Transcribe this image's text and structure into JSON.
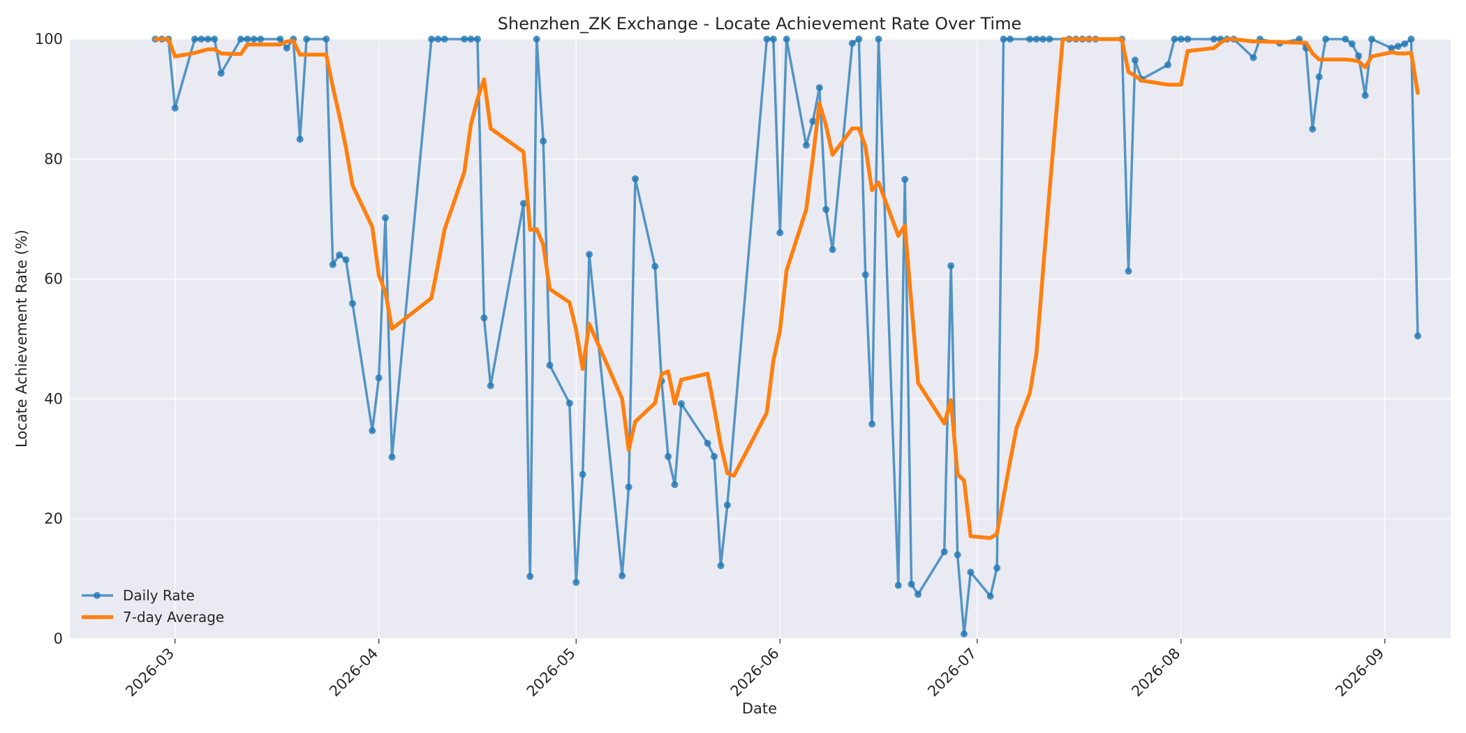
{
  "chart_data": {
    "type": "line",
    "title": "Shenzhen_ZK Exchange - Locate Achievement Rate Over Time",
    "xlabel": "Date",
    "ylabel": "Locate Achievement Rate (%)",
    "ylim": [
      0,
      100
    ],
    "xlim": [
      "2026-02-13",
      "2026-09-11"
    ],
    "y_ticks": [
      0,
      20,
      40,
      60,
      80,
      100
    ],
    "x_ticks": [
      "2026-03",
      "2026-04",
      "2026-05",
      "2026-06",
      "2026-07",
      "2026-08",
      "2026-09"
    ],
    "grid": true,
    "legend_position": "lower-left",
    "series": [
      {
        "name": "Daily Rate",
        "color": "#1f77b4",
        "marker": "circle",
        "points": [
          [
            "2026-02-26",
            100
          ],
          [
            "2026-02-27",
            100
          ],
          [
            "2026-02-28",
            100
          ],
          [
            "2026-03-01",
            88.5
          ],
          [
            "2026-03-04",
            100
          ],
          [
            "2026-03-05",
            100
          ],
          [
            "2026-03-06",
            100
          ],
          [
            "2026-03-07",
            100
          ],
          [
            "2026-03-08",
            94.3
          ],
          [
            "2026-03-11",
            100
          ],
          [
            "2026-03-12",
            100
          ],
          [
            "2026-03-13",
            100
          ],
          [
            "2026-03-14",
            100
          ],
          [
            "2026-03-17",
            100
          ],
          [
            "2026-03-18",
            98.5
          ],
          [
            "2026-03-19",
            100
          ],
          [
            "2026-03-20",
            83.3
          ],
          [
            "2026-03-21",
            100
          ],
          [
            "2026-03-24",
            100
          ],
          [
            "2026-03-25",
            62.4
          ],
          [
            "2026-03-26",
            64
          ],
          [
            "2026-03-27",
            63.2
          ],
          [
            "2026-03-28",
            55.9
          ],
          [
            "2026-03-31",
            34.7
          ],
          [
            "2026-04-01",
            43.5
          ],
          [
            "2026-04-02",
            70.2
          ],
          [
            "2026-04-03",
            30.3
          ],
          [
            "2026-04-09",
            100
          ],
          [
            "2026-04-10",
            100
          ],
          [
            "2026-04-11",
            100
          ],
          [
            "2026-04-14",
            100
          ],
          [
            "2026-04-15",
            100
          ],
          [
            "2026-04-16",
            100
          ],
          [
            "2026-04-17",
            53.5
          ],
          [
            "2026-04-18",
            42.2
          ],
          [
            "2026-04-23",
            72.6
          ],
          [
            "2026-04-24",
            10.4
          ],
          [
            "2026-04-25",
            100
          ],
          [
            "2026-04-26",
            83
          ],
          [
            "2026-04-27",
            45.6
          ],
          [
            "2026-04-30",
            39.3
          ],
          [
            "2026-05-01",
            9.4
          ],
          [
            "2026-05-02",
            27.4
          ],
          [
            "2026-05-03",
            64.1
          ],
          [
            "2026-05-08",
            10.5
          ],
          [
            "2026-05-09",
            25.3
          ],
          [
            "2026-05-10",
            76.7
          ],
          [
            "2026-05-13",
            62.1
          ],
          [
            "2026-05-14",
            43
          ],
          [
            "2026-05-15",
            30.4
          ],
          [
            "2026-05-16",
            25.7
          ],
          [
            "2026-05-17",
            39.2
          ],
          [
            "2026-05-21",
            32.6
          ],
          [
            "2026-05-22",
            30.4
          ],
          [
            "2026-05-23",
            12.2
          ],
          [
            "2026-05-24",
            22.3
          ],
          [
            "2026-05-30",
            100
          ],
          [
            "2026-05-31",
            100
          ],
          [
            "2026-06-01",
            67.7
          ],
          [
            "2026-06-02",
            100
          ],
          [
            "2026-06-05",
            82.3
          ],
          [
            "2026-06-06",
            86.3
          ],
          [
            "2026-06-07",
            91.9
          ],
          [
            "2026-06-08",
            71.6
          ],
          [
            "2026-06-09",
            64.9
          ],
          [
            "2026-06-12",
            99.3
          ],
          [
            "2026-06-13",
            100
          ],
          [
            "2026-06-14",
            60.7
          ],
          [
            "2026-06-15",
            35.8
          ],
          [
            "2026-06-16",
            100
          ],
          [
            "2026-06-19",
            8.9
          ],
          [
            "2026-06-20",
            76.6
          ],
          [
            "2026-06-21",
            9.1
          ],
          [
            "2026-06-22",
            7.4
          ],
          [
            "2026-06-26",
            14.5
          ],
          [
            "2026-06-27",
            62.2
          ],
          [
            "2026-06-28",
            14
          ],
          [
            "2026-06-29",
            0.8
          ],
          [
            "2026-06-30",
            11.1
          ],
          [
            "2026-07-03",
            7.1
          ],
          [
            "2026-07-04",
            11.8
          ],
          [
            "2026-07-05",
            100
          ],
          [
            "2026-07-06",
            100
          ],
          [
            "2026-07-09",
            100
          ],
          [
            "2026-07-10",
            100
          ],
          [
            "2026-07-11",
            100
          ],
          [
            "2026-07-12",
            100
          ],
          [
            "2026-07-15",
            100
          ],
          [
            "2026-07-16",
            100
          ],
          [
            "2026-07-17",
            100
          ],
          [
            "2026-07-18",
            100
          ],
          [
            "2026-07-19",
            100
          ],
          [
            "2026-07-23",
            100
          ],
          [
            "2026-07-24",
            61.3
          ],
          [
            "2026-07-25",
            96.5
          ],
          [
            "2026-07-26",
            93.3
          ],
          [
            "2026-07-30",
            95.7
          ],
          [
            "2026-07-31",
            100
          ],
          [
            "2026-08-01",
            100
          ],
          [
            "2026-08-02",
            100
          ],
          [
            "2026-08-06",
            100
          ],
          [
            "2026-08-07",
            100
          ],
          [
            "2026-08-08",
            100
          ],
          [
            "2026-08-09",
            100
          ],
          [
            "2026-08-12",
            96.9
          ],
          [
            "2026-08-13",
            100
          ],
          [
            "2026-08-16",
            99.3
          ],
          [
            "2026-08-19",
            100
          ],
          [
            "2026-08-20",
            98.5
          ],
          [
            "2026-08-21",
            85
          ],
          [
            "2026-08-22",
            93.7
          ],
          [
            "2026-08-23",
            100
          ],
          [
            "2026-08-26",
            100
          ],
          [
            "2026-08-27",
            99.2
          ],
          [
            "2026-08-28",
            97.2
          ],
          [
            "2026-08-29",
            90.6
          ],
          [
            "2026-08-30",
            100
          ],
          [
            "2026-09-02",
            98.5
          ],
          [
            "2026-09-03",
            98.8
          ],
          [
            "2026-09-04",
            99.2
          ],
          [
            "2026-09-05",
            100
          ],
          [
            "2026-09-06",
            50.5
          ]
        ]
      },
      {
        "name": "7-day Average",
        "color": "#ff7f0e",
        "marker": "none",
        "points": [
          [
            "2026-02-26",
            100
          ],
          [
            "2026-02-27",
            100
          ],
          [
            "2026-02-28",
            100
          ],
          [
            "2026-03-01",
            97.1
          ],
          [
            "2026-03-04",
            97.7
          ],
          [
            "2026-03-05",
            98
          ],
          [
            "2026-03-06",
            98.3
          ],
          [
            "2026-03-07",
            98.3
          ],
          [
            "2026-03-08",
            97.6
          ],
          [
            "2026-03-11",
            97.5
          ],
          [
            "2026-03-12",
            99.1
          ],
          [
            "2026-03-13",
            99.1
          ],
          [
            "2026-03-14",
            99.1
          ],
          [
            "2026-03-17",
            99.1
          ],
          [
            "2026-03-18",
            99.6
          ],
          [
            "2026-03-19",
            99.7
          ],
          [
            "2026-03-20",
            97.4
          ],
          [
            "2026-03-21",
            97.4
          ],
          [
            "2026-03-24",
            97.4
          ],
          [
            "2026-03-25",
            92
          ],
          [
            "2026-03-26",
            87.2
          ],
          [
            "2026-03-27",
            81.9
          ],
          [
            "2026-03-28",
            75.6
          ],
          [
            "2026-03-31",
            68.7
          ],
          [
            "2026-04-01",
            60.6
          ],
          [
            "2026-04-02",
            57.8
          ],
          [
            "2026-04-03",
            51.7
          ],
          [
            "2026-04-09",
            56.8
          ],
          [
            "2026-04-10",
            62.4
          ],
          [
            "2026-04-11",
            68.3
          ],
          [
            "2026-04-14",
            77.8
          ],
          [
            "2026-04-15",
            85.8
          ],
          [
            "2026-04-16",
            90
          ],
          [
            "2026-04-17",
            93.3
          ],
          [
            "2026-04-18",
            85.1
          ],
          [
            "2026-04-23",
            81.2
          ],
          [
            "2026-04-24",
            68.2
          ],
          [
            "2026-04-25",
            68.3
          ],
          [
            "2026-04-26",
            65.7
          ],
          [
            "2026-04-27",
            58.3
          ],
          [
            "2026-04-30",
            56.1
          ],
          [
            "2026-05-01",
            51.5
          ],
          [
            "2026-05-02",
            45
          ],
          [
            "2026-05-03",
            52.5
          ],
          [
            "2026-05-08",
            40
          ],
          [
            "2026-05-09",
            31.5
          ],
          [
            "2026-05-10",
            36.2
          ],
          [
            "2026-05-13",
            39.3
          ],
          [
            "2026-05-14",
            44.1
          ],
          [
            "2026-05-15",
            44.6
          ],
          [
            "2026-05-16",
            39.2
          ],
          [
            "2026-05-17",
            43.2
          ],
          [
            "2026-05-21",
            44.2
          ],
          [
            "2026-05-22",
            38.5
          ],
          [
            "2026-05-23",
            32.3
          ],
          [
            "2026-05-24",
            27.6
          ],
          [
            "2026-05-25",
            27.2
          ],
          [
            "2026-05-30",
            37.7
          ],
          [
            "2026-05-31",
            46.4
          ],
          [
            "2026-06-01",
            51.4
          ],
          [
            "2026-06-02",
            61.4
          ],
          [
            "2026-06-05",
            71.6
          ],
          [
            "2026-06-06",
            80.2
          ],
          [
            "2026-06-07",
            89.3
          ],
          [
            "2026-06-08",
            85.6
          ],
          [
            "2026-06-09",
            80.7
          ],
          [
            "2026-06-12",
            85.1
          ],
          [
            "2026-06-13",
            85.1
          ],
          [
            "2026-06-14",
            82.1
          ],
          [
            "2026-06-15",
            74.8
          ],
          [
            "2026-06-16",
            76.1
          ],
          [
            "2026-06-19",
            67.2
          ],
          [
            "2026-06-20",
            68.9
          ],
          [
            "2026-06-22",
            42.7
          ],
          [
            "2026-06-26",
            35.9
          ],
          [
            "2026-06-27",
            39.8
          ],
          [
            "2026-06-28",
            27.4
          ],
          [
            "2026-06-29",
            26.4
          ],
          [
            "2026-06-30",
            17.1
          ],
          [
            "2026-07-03",
            16.8
          ],
          [
            "2026-07-04",
            17.5
          ],
          [
            "2026-07-05",
            23.6
          ],
          [
            "2026-07-06",
            29.6
          ],
          [
            "2026-07-07",
            35.2
          ],
          [
            "2026-07-09",
            41
          ],
          [
            "2026-07-10",
            47.5
          ],
          [
            "2026-07-11",
            61.2
          ],
          [
            "2026-07-12",
            74.7
          ],
          [
            "2026-07-14",
            100
          ],
          [
            "2026-07-15",
            100
          ],
          [
            "2026-07-16",
            100
          ],
          [
            "2026-07-17",
            100
          ],
          [
            "2026-07-18",
            100
          ],
          [
            "2026-07-19",
            100
          ],
          [
            "2026-07-23",
            100
          ],
          [
            "2026-07-24",
            94.5
          ],
          [
            "2026-07-25",
            93.9
          ],
          [
            "2026-07-26",
            93.1
          ],
          [
            "2026-07-30",
            92.4
          ],
          [
            "2026-07-31",
            92.4
          ],
          [
            "2026-08-01",
            92.4
          ],
          [
            "2026-08-02",
            98
          ],
          [
            "2026-08-06",
            98.5
          ],
          [
            "2026-08-07",
            99.4
          ],
          [
            "2026-08-08",
            100
          ],
          [
            "2026-08-09",
            100
          ],
          [
            "2026-08-12",
            99.6
          ],
          [
            "2026-08-13",
            99.6
          ],
          [
            "2026-08-16",
            99.5
          ],
          [
            "2026-08-19",
            99.4
          ],
          [
            "2026-08-20",
            99.4
          ],
          [
            "2026-08-21",
            97.6
          ],
          [
            "2026-08-22",
            96.6
          ],
          [
            "2026-08-23",
            96.6
          ],
          [
            "2026-08-26",
            96.6
          ],
          [
            "2026-08-27",
            96.5
          ],
          [
            "2026-08-28",
            96.3
          ],
          [
            "2026-08-29",
            95.3
          ],
          [
            "2026-08-30",
            97.1
          ],
          [
            "2026-09-02",
            97.8
          ],
          [
            "2026-09-03",
            97.6
          ],
          [
            "2026-09-04",
            97.6
          ],
          [
            "2026-09-05",
            97.7
          ],
          [
            "2026-09-06",
            91
          ]
        ]
      }
    ]
  }
}
